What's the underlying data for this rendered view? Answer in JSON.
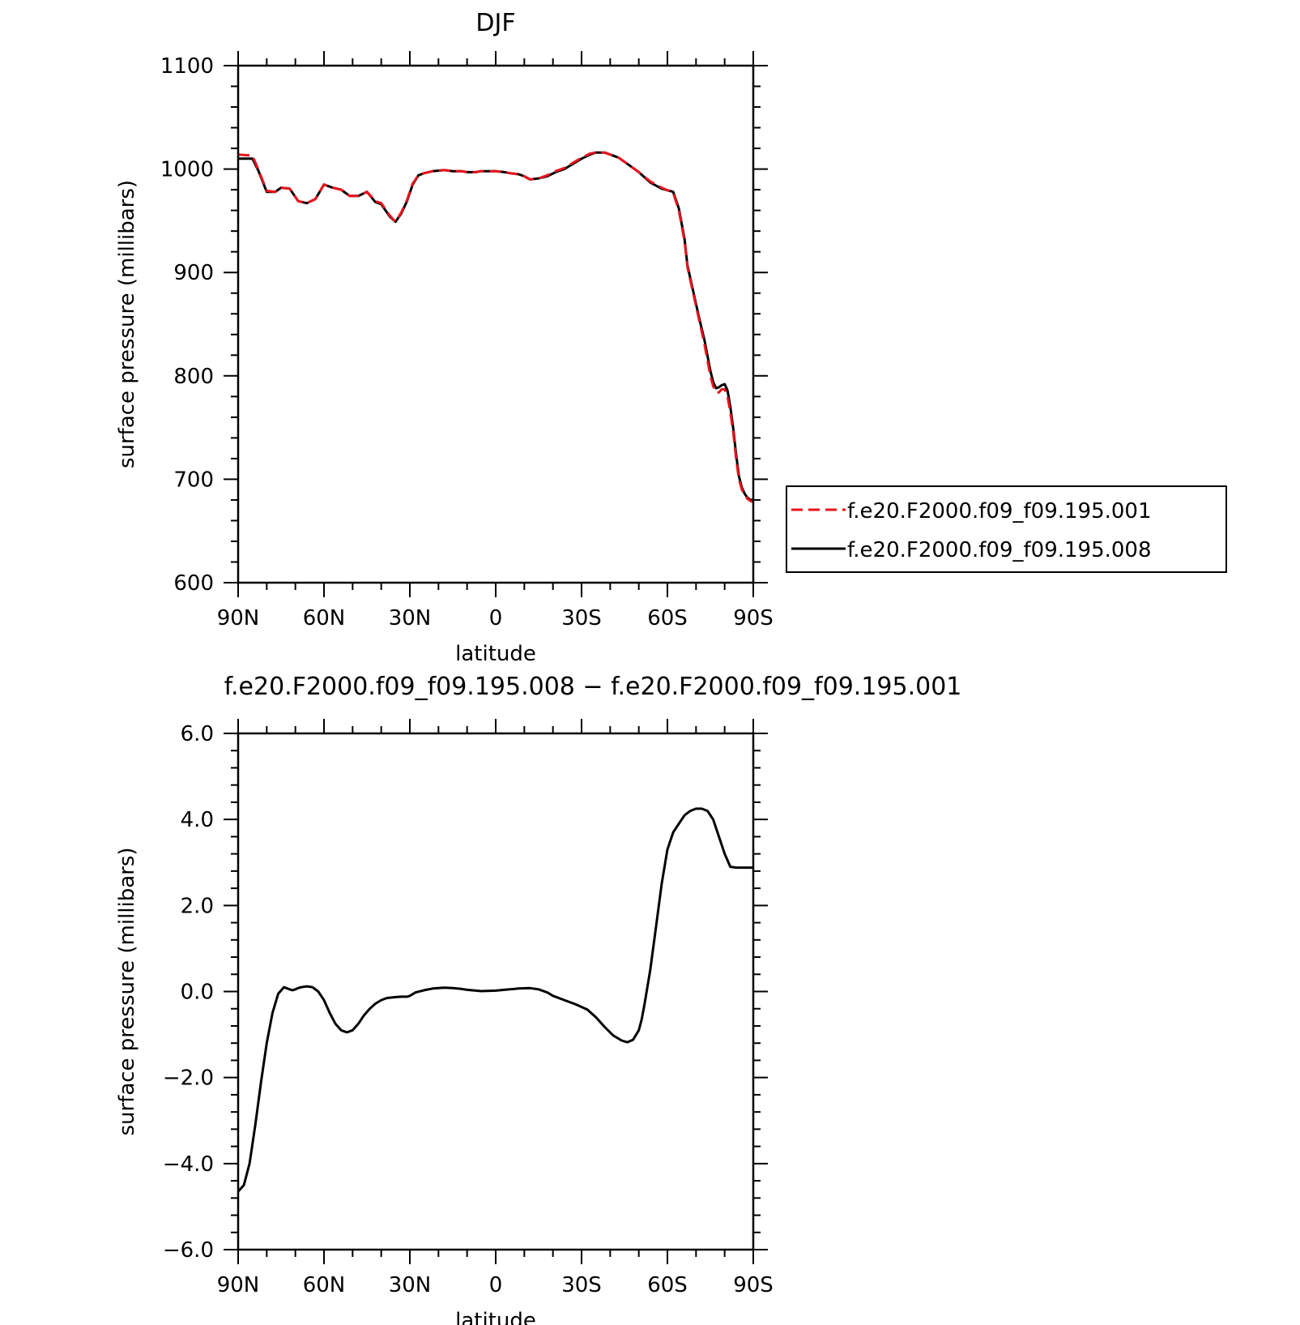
{
  "chart_data": [
    {
      "type": "line",
      "title": "DJF",
      "xlabel": "latitude",
      "ylabel": "surface pressure (millibars)",
      "xlim": [
        90,
        -90
      ],
      "ylim": [
        600,
        1100
      ],
      "xticks": [
        90,
        60,
        30,
        0,
        -30,
        -60,
        -90
      ],
      "xtick_labels": [
        "90N",
        "60N",
        "30N",
        "0",
        "30S",
        "60S",
        "90S"
      ],
      "yticks": [
        600,
        700,
        800,
        900,
        1000,
        1100
      ],
      "ytick_labels": [
        "600",
        "700",
        "800",
        "900",
        "1000",
        "1100"
      ],
      "legend_position": "right",
      "series": [
        {
          "name": "f.e20.F2000.f09_f09.195.001",
          "color": "#e8141e",
          "dash": "dashed",
          "x": [
            90,
            85,
            83,
            80,
            77,
            75,
            72,
            69,
            66,
            63,
            60,
            57,
            54,
            51,
            48,
            45,
            42,
            40,
            37,
            35,
            33,
            31,
            29,
            27,
            25,
            22,
            18,
            15,
            12,
            10,
            7,
            5,
            2,
            0,
            -3,
            -5,
            -8,
            -10,
            -12,
            -15,
            -18,
            -21,
            -24,
            -27,
            -30,
            -33,
            -35,
            -38,
            -40,
            -43,
            -46,
            -50,
            -54,
            -58,
            -62,
            -64,
            -66,
            -67,
            -69,
            -71,
            -73,
            -75,
            -76,
            -77,
            -78,
            -79,
            -80,
            -81,
            -82,
            -83,
            -84,
            -85,
            -86,
            -87,
            -88,
            -89,
            -90
          ],
          "y": [
            1014,
            1013,
            1000,
            979,
            978,
            982,
            981,
            969,
            967,
            971,
            985,
            982,
            980,
            974,
            974,
            978,
            969,
            967,
            955,
            949,
            958,
            970,
            986,
            994,
            996,
            998,
            999,
            998,
            998,
            997,
            997,
            998,
            998,
            998,
            997,
            996,
            995,
            993,
            990,
            991,
            994,
            998,
            1001,
            1006,
            1011,
            1015,
            1016,
            1016,
            1014,
            1011,
            1005,
            997,
            988,
            982,
            977,
            960,
            930,
            905,
            880,
            855,
            830,
            800,
            790,
            784,
            784,
            787,
            787,
            780,
            765,
            745,
            720,
            700,
            690,
            685,
            681,
            679,
            678
          ]
        },
        {
          "name": "f.e20.F2000.f09_f09.195.008",
          "color": "#000000",
          "dash": "solid",
          "x": [
            90,
            85,
            83,
            80,
            77,
            75,
            72,
            69,
            66,
            63,
            60,
            57,
            54,
            51,
            48,
            45,
            42,
            40,
            37,
            35,
            33,
            31,
            29,
            27,
            25,
            22,
            18,
            15,
            12,
            10,
            7,
            5,
            2,
            0,
            -3,
            -5,
            -8,
            -10,
            -12,
            -15,
            -18,
            -21,
            -24,
            -27,
            -30,
            -33,
            -35,
            -38,
            -40,
            -43,
            -46,
            -50,
            -54,
            -58,
            -62,
            -64,
            -66,
            -67,
            -69,
            -71,
            -73,
            -75,
            -76,
            -77,
            -78,
            -79,
            -80,
            -81,
            -82,
            -83,
            -84,
            -85,
            -86,
            -87,
            -88,
            -89,
            -90
          ],
          "y": [
            1010,
            1010,
            999,
            978,
            978,
            982,
            981,
            969,
            967,
            971,
            985,
            982,
            980,
            974,
            974,
            978,
            968,
            966,
            954,
            949,
            957,
            969,
            985,
            994,
            996,
            998,
            999,
            998,
            998,
            997,
            997,
            998,
            998,
            998,
            997,
            996,
            995,
            993,
            990,
            991,
            993,
            997,
            1000,
            1005,
            1010,
            1014,
            1016,
            1016,
            1014,
            1011,
            1005,
            997,
            987,
            981,
            978,
            962,
            932,
            907,
            882,
            857,
            834,
            805,
            794,
            788,
            789,
            791,
            792,
            786,
            770,
            749,
            724,
            703,
            692,
            686,
            682,
            680,
            680
          ]
        }
      ]
    },
    {
      "type": "line",
      "title": "f.e20.F2000.f09_f09.195.008 − f.e20.F2000.f09_f09.195.001",
      "xlabel": "latitude",
      "ylabel": "surface pressure (millibars)",
      "xlim": [
        90,
        -90
      ],
      "ylim": [
        -6,
        6
      ],
      "xticks": [
        90,
        60,
        30,
        0,
        -30,
        -60,
        -90
      ],
      "xtick_labels": [
        "90N",
        "60N",
        "30N",
        "0",
        "30S",
        "60S",
        "90S"
      ],
      "yticks": [
        -6,
        -4,
        -2,
        0,
        2,
        4,
        6
      ],
      "ytick_labels": [
        "−6.0",
        "−4.0",
        "−2.0",
        "0.0",
        "2.0",
        "4.0",
        "6.0"
      ],
      "series": [
        {
          "color": "#000000",
          "dash": "solid",
          "x": [
            90,
            88,
            86,
            84,
            82,
            80,
            78,
            76,
            74,
            72,
            71,
            70,
            69,
            68,
            66,
            64,
            62,
            60,
            58,
            56,
            54,
            52,
            50,
            48,
            46,
            44,
            42,
            40,
            38,
            35,
            33,
            31,
            30,
            28,
            25,
            22,
            18,
            15,
            12,
            10,
            5,
            0,
            -3,
            -5,
            -8,
            -12,
            -15,
            -18,
            -20,
            -24,
            -28,
            -32,
            -35,
            -38,
            -41,
            -44,
            -46,
            -48,
            -50,
            -51,
            -52,
            -54,
            -56,
            -58,
            -60,
            -62,
            -64,
            -66,
            -68,
            -70,
            -72,
            -74,
            -76,
            -78,
            -80,
            -82,
            -84,
            -86,
            -88,
            -90
          ],
          "y": [
            -4.65,
            -4.5,
            -4.0,
            -3.1,
            -2.1,
            -1.2,
            -0.5,
            -0.05,
            0.1,
            0.05,
            0.03,
            0.05,
            0.08,
            0.1,
            0.12,
            0.1,
            0.0,
            -0.2,
            -0.5,
            -0.75,
            -0.9,
            -0.95,
            -0.9,
            -0.75,
            -0.55,
            -0.4,
            -0.28,
            -0.2,
            -0.15,
            -0.13,
            -0.12,
            -0.12,
            -0.1,
            -0.02,
            0.03,
            0.07,
            0.09,
            0.08,
            0.06,
            0.04,
            0.01,
            0.02,
            0.04,
            0.05,
            0.07,
            0.08,
            0.05,
            -0.02,
            -0.1,
            -0.2,
            -0.3,
            -0.42,
            -0.6,
            -0.82,
            -1.02,
            -1.14,
            -1.18,
            -1.12,
            -0.9,
            -0.65,
            -0.3,
            0.5,
            1.5,
            2.5,
            3.3,
            3.7,
            3.9,
            4.1,
            4.2,
            4.25,
            4.25,
            4.2,
            4.0,
            3.6,
            3.2,
            2.9,
            2.88,
            2.88,
            2.88,
            2.88
          ]
        }
      ]
    }
  ]
}
